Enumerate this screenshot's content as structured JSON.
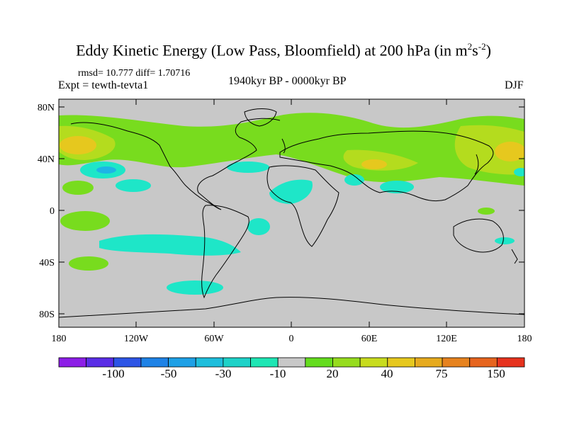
{
  "title": {
    "main": "Eddy Kinetic Energy (Low Pass, Bloomfield) at 200 hPa (in m",
    "sup1": "2",
    "mid": "s",
    "sup2": "-2",
    "close": ")"
  },
  "stats": "rmsd= 10.777 diff= 1.70716",
  "experiment": "Expt = tewth-tevta1",
  "period": "1940kyr BP - 0000kyr BP",
  "season": "DJF",
  "axes": {
    "y_labels": [
      "80N",
      "40N",
      "0",
      "40S",
      "80S"
    ],
    "x_labels": [
      "180",
      "120W",
      "60W",
      "0",
      "60E",
      "120E",
      "180"
    ]
  },
  "colorbar": {
    "labels": [
      "-100",
      "-50",
      "-30",
      "-10",
      "20",
      "40",
      "75",
      "150"
    ],
    "colors": [
      "#8c1ee6",
      "#5a2de6",
      "#2d55e6",
      "#1e82e6",
      "#1ea0e6",
      "#1ebedc",
      "#1ed2c8",
      "#1ee6b4",
      "#c8c8c8",
      "#64dc1e",
      "#96dc1e",
      "#c8dc1e",
      "#e6c81e",
      "#e6aa1e",
      "#e6821e",
      "#e6641e",
      "#e6321e"
    ]
  },
  "map_colors": {
    "background": "#c8c8c8",
    "green": "#78dc1e",
    "yellow_green": "#b4dc1e",
    "yellow": "#e6c81e",
    "cyan": "#1ee6c8",
    "blue": "#1eb4e6"
  }
}
